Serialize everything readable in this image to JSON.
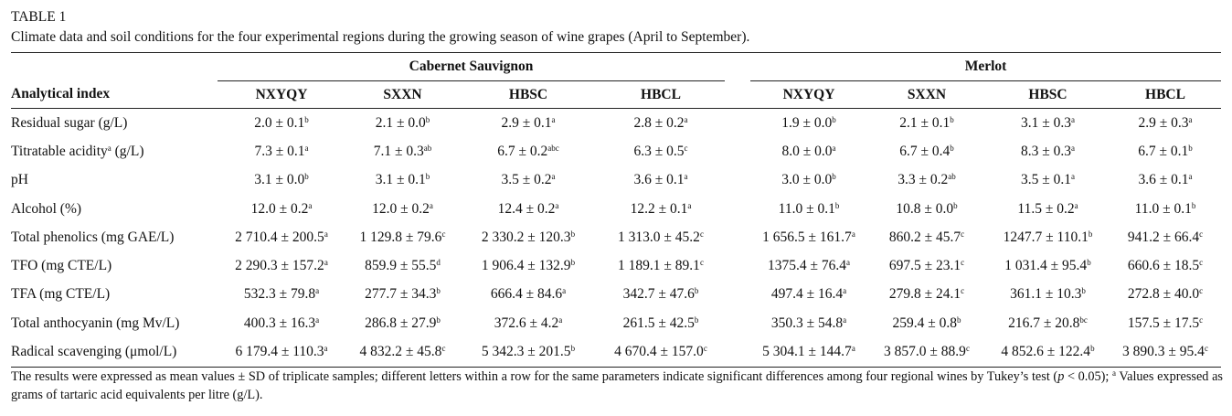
{
  "table_label": "TABLE 1",
  "caption": "Climate data and soil conditions for the four experimental regions during the growing season of wine grapes (April to September).",
  "groups": [
    "Cabernet Sauvignon",
    "Merlot"
  ],
  "row_header": "Analytical index",
  "columns": [
    "NXYQY",
    "SXXN",
    "HBSC",
    "HBCL",
    "NXYQY",
    "SXXN",
    "HBSC",
    "HBCL"
  ],
  "rows": [
    {
      "label": "Residual sugar (g/L)",
      "cells": [
        [
          "2.0 ± 0.1",
          "b"
        ],
        [
          "2.1 ± 0.0",
          "b"
        ],
        [
          "2.9 ± 0.1",
          "a"
        ],
        [
          "2.8 ± 0.2",
          "a"
        ],
        [
          "1.9 ± 0.0",
          "b"
        ],
        [
          "2.1 ± 0.1",
          "b"
        ],
        [
          "3.1 ± 0.3",
          "a"
        ],
        [
          "2.9 ± 0.3",
          "a"
        ]
      ]
    },
    {
      "label": "Titratable acidity",
      "label_sup": "a",
      "label_tail": " (g/L)",
      "cells": [
        [
          "7.3 ± 0.1",
          "a"
        ],
        [
          "7.1 ± 0.3",
          "ab"
        ],
        [
          "6.7 ± 0.2",
          "abc"
        ],
        [
          "6.3 ± 0.5",
          "c"
        ],
        [
          "8.0 ± 0.0",
          "a"
        ],
        [
          "6.7 ± 0.4",
          "b"
        ],
        [
          "8.3 ± 0.3",
          "a"
        ],
        [
          "6.7 ± 0.1",
          "b"
        ]
      ]
    },
    {
      "label": "pH",
      "cells": [
        [
          "3.1 ± 0.0",
          "b"
        ],
        [
          "3.1 ± 0.1",
          "b"
        ],
        [
          "3.5 ± 0.2",
          "a"
        ],
        [
          "3.6 ± 0.1",
          "a"
        ],
        [
          "3.0 ± 0.0",
          "b"
        ],
        [
          "3.3 ± 0.2",
          "ab"
        ],
        [
          "3.5 ± 0.1",
          "a"
        ],
        [
          "3.6 ± 0.1",
          "a"
        ]
      ]
    },
    {
      "label": "Alcohol (%)",
      "cells": [
        [
          "12.0 ± 0.2",
          "a"
        ],
        [
          "12.0 ± 0.2",
          "a"
        ],
        [
          "12.4 ± 0.2",
          "a"
        ],
        [
          "12.2 ± 0.1",
          "a"
        ],
        [
          "11.0 ± 0.1",
          "b"
        ],
        [
          "10.8 ± 0.0",
          "b"
        ],
        [
          "11.5 ± 0.2",
          "a"
        ],
        [
          "11.0 ± 0.1",
          "b"
        ]
      ]
    },
    {
      "label": "Total phenolics (mg GAE/L)",
      "cells": [
        [
          "2 710.4 ± 200.5",
          "a"
        ],
        [
          "1 129.8 ± 79.6",
          "c"
        ],
        [
          "2 330.2 ± 120.3",
          "b"
        ],
        [
          "1 313.0 ± 45.2",
          "c"
        ],
        [
          "1 656.5 ± 161.7",
          "a"
        ],
        [
          "860.2 ± 45.7",
          "c"
        ],
        [
          "1247.7 ± 110.1",
          "b"
        ],
        [
          "941.2 ± 66.4",
          "c"
        ]
      ]
    },
    {
      "label": "TFO (mg CTE/L)",
      "cells": [
        [
          "2 290.3 ± 157.2",
          "a"
        ],
        [
          "859.9 ± 55.5",
          "d"
        ],
        [
          "1 906.4 ± 132.9",
          "b"
        ],
        [
          "1 189.1 ± 89.1",
          "c"
        ],
        [
          "1375.4 ± 76.4",
          "a"
        ],
        [
          "697.5 ± 23.1",
          "c"
        ],
        [
          "1 031.4 ± 95.4",
          "b"
        ],
        [
          "660.6 ± 18.5",
          "c"
        ]
      ]
    },
    {
      "label": "TFA (mg CTE/L)",
      "cells": [
        [
          "532.3 ± 79.8",
          "a"
        ],
        [
          "277.7 ± 34.3",
          "b"
        ],
        [
          "666.4 ± 84.6",
          "a"
        ],
        [
          "342.7 ± 47.6",
          "b"
        ],
        [
          "497.4 ± 16.4",
          "a"
        ],
        [
          "279.8 ± 24.1",
          "c"
        ],
        [
          "361.1 ± 10.3",
          "b"
        ],
        [
          "272.8 ± 40.0",
          "c"
        ]
      ]
    },
    {
      "label": "Total anthocyanin (mg Mv/L)",
      "cells": [
        [
          "400.3 ± 16.3",
          "a"
        ],
        [
          "286.8 ± 27.9",
          "b"
        ],
        [
          "372.6 ± 4.2",
          "a"
        ],
        [
          "261.5 ± 42.5",
          "b"
        ],
        [
          "350.3 ± 54.8",
          "a"
        ],
        [
          "259.4 ± 0.8",
          "b"
        ],
        [
          "216.7 ± 20.8",
          "bc"
        ],
        [
          "157.5 ± 17.5",
          "c"
        ]
      ]
    },
    {
      "label": "Radical scavenging (μmol/L)",
      "cells": [
        [
          "6 179.4 ± 110.3",
          "a"
        ],
        [
          "4 832.2 ± 45.8",
          "c"
        ],
        [
          "5 342.3 ± 201.5",
          "b"
        ],
        [
          "4 670.4 ± 157.0",
          "c"
        ],
        [
          "5 304.1 ± 144.7",
          "a"
        ],
        [
          "3 857.0 ± 88.9",
          "c"
        ],
        [
          "4 852.6 ± 122.4",
          "b"
        ],
        [
          "3 890.3 ± 95.4",
          "c"
        ]
      ]
    }
  ],
  "footnote": {
    "part1": "The results were expressed as mean values ± SD of triplicate samples; different letters within a row for the same parameters indicate significant differences among four regional wines by Tukey’s test (",
    "p": "p",
    "part2": " < 0.05); ",
    "sup": "a",
    "part3": " Values expressed as grams of tartaric acid equivalents per litre (g/L)."
  }
}
